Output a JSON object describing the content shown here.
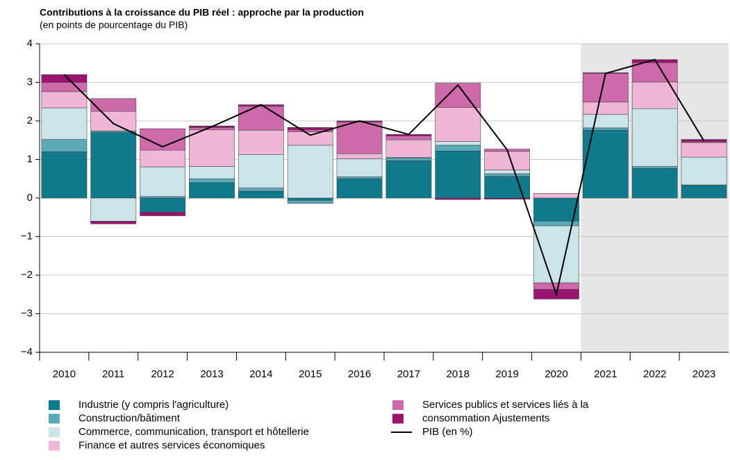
{
  "chart_data": {
    "type": "bar",
    "title": "Contributions à la croissance du PIB réel : approche par la production",
    "subtitle": "(en points de pourcentage du PIB)",
    "categories": [
      "2010",
      "2011",
      "2012",
      "2013",
      "2014",
      "2015",
      "2016",
      "2017",
      "2018",
      "2019",
      "2020",
      "2021",
      "2022",
      "2023"
    ],
    "stacked": true,
    "shade_start": "2021",
    "series": [
      {
        "name": "Industrie (y compris l'agriculture)",
        "color": "#0e7a8c",
        "values": [
          1.2,
          1.7,
          -0.37,
          0.4,
          0.18,
          -0.06,
          0.5,
          0.97,
          1.22,
          0.56,
          -0.6,
          1.76,
          0.77,
          0.33
        ]
      },
      {
        "name": "Construction/bâtiment",
        "color": "#5aaab9",
        "values": [
          0.32,
          0.04,
          0.04,
          0.1,
          0.08,
          -0.08,
          0.05,
          0.07,
          0.15,
          0.07,
          -0.12,
          0.06,
          0.05,
          0.01
        ]
      },
      {
        "name": "Commerce, communication, transport et hôtellerie",
        "color": "#cbe4ea",
        "values": [
          0.82,
          -0.6,
          0.77,
          0.32,
          0.87,
          1.37,
          0.47,
          0.01,
          0.1,
          0.1,
          -1.48,
          0.35,
          1.5,
          0.72
        ]
      },
      {
        "name": "Finance et autres services économiques",
        "color": "#efb6d6",
        "values": [
          0.42,
          0.51,
          0.43,
          0.95,
          0.63,
          0.35,
          0.13,
          0.46,
          0.88,
          0.48,
          0.12,
          0.32,
          0.69,
          0.38
        ]
      },
      {
        "name": "Services publics et services liés à la",
        "color": "#cc6aaa",
        "values": [
          0.24,
          0.33,
          0.56,
          0.06,
          0.62,
          0.05,
          0.82,
          0.1,
          0.63,
          0.06,
          -0.17,
          0.74,
          0.5,
          0.02
        ]
      },
      {
        "name": "consommation Ajustements",
        "color": "#9b1370",
        "values": [
          0.2,
          -0.07,
          -0.09,
          0.04,
          0.04,
          0.06,
          0.03,
          0.04,
          -0.04,
          -0.03,
          -0.25,
          0.02,
          0.08,
          0.06
        ]
      }
    ],
    "line": {
      "name": "PIB (en %)",
      "color": "#000000",
      "values": [
        3.2,
        1.93,
        1.33,
        1.85,
        2.42,
        1.63,
        2.0,
        1.65,
        2.93,
        1.25,
        -2.5,
        3.23,
        3.59,
        1.48
      ]
    },
    "ylim": [
      -4,
      4
    ],
    "yticks": [
      -4,
      {
        "value": -4,
        "label": "−4"
      },
      {
        "value": -3,
        "label": "−3"
      },
      {
        "value": -2,
        "label": "−2"
      },
      {
        "value": -1,
        "label": "−1"
      },
      0,
      1,
      2,
      3,
      4
    ],
    "grid": true
  }
}
